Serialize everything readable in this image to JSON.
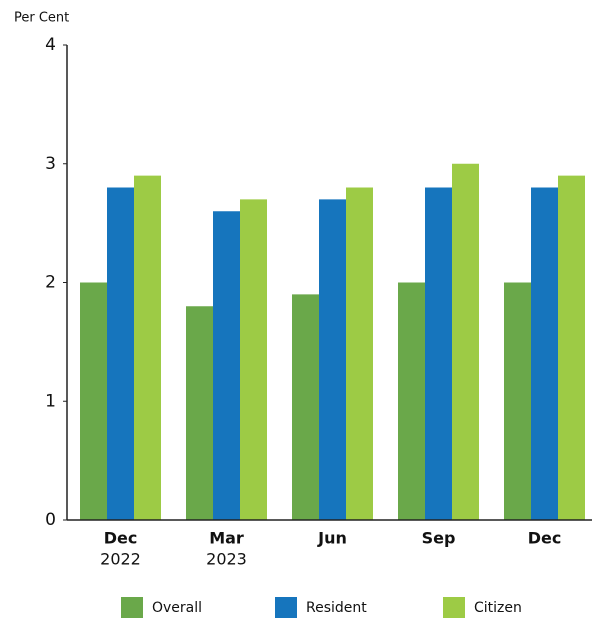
{
  "chart_data": {
    "type": "bar",
    "y_label": "Per Cent",
    "categories": [
      "Dec",
      "Mar",
      "Jun",
      "Sep",
      "Dec"
    ],
    "category_years": [
      "2022",
      "2023",
      null,
      null,
      null
    ],
    "series": [
      {
        "name": "Overall",
        "color": "#6aa84a",
        "values": [
          2.0,
          1.8,
          1.9,
          2.0,
          2.0
        ]
      },
      {
        "name": "Resident",
        "color": "#1675bd",
        "values": [
          2.8,
          2.6,
          2.7,
          2.8,
          2.8
        ]
      },
      {
        "name": "Citizen",
        "color": "#9dcb45",
        "values": [
          2.9,
          2.7,
          2.8,
          3.0,
          2.9
        ]
      }
    ],
    "ylim": [
      0,
      4
    ],
    "yticks": [
      0,
      1,
      2,
      3,
      4
    ],
    "grid": false
  }
}
